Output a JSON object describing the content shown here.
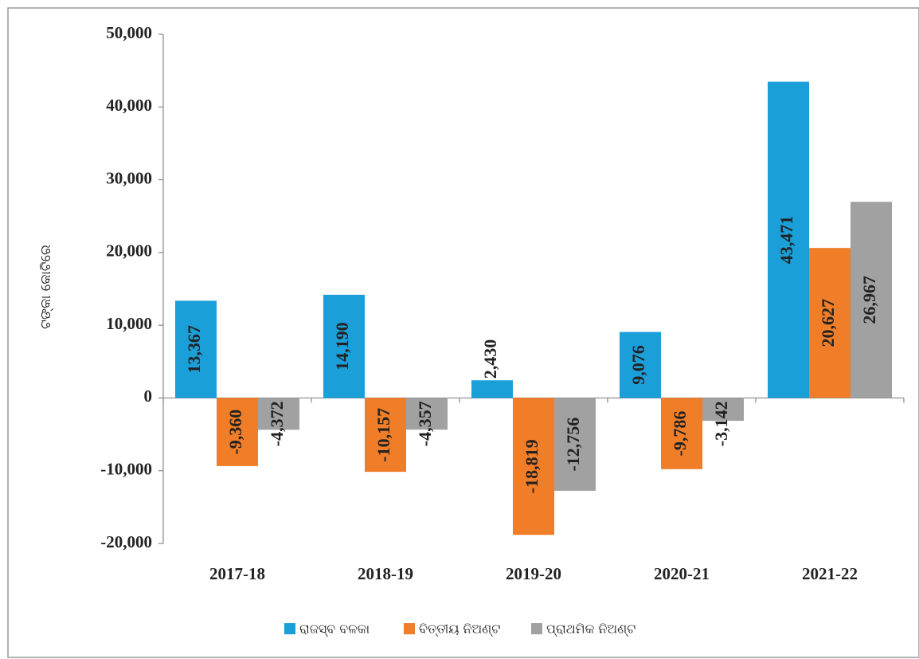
{
  "chart_data": {
    "type": "bar",
    "ylabel": "ଟଙ୍କା କୋଟିରେ",
    "categories": [
      "2017-18",
      "2018-19",
      "2019-20",
      "2020-21",
      "2021-22"
    ],
    "series": [
      {
        "name": "ରାଜସ୍ବ ବଳକା",
        "color": "#1b9fd9",
        "values": [
          13367,
          14190,
          2430,
          9076,
          43471
        ],
        "value_labels": [
          "13,367",
          "14,190",
          "2,430",
          "9,076",
          "43,471"
        ]
      },
      {
        "name": "ବିତ୍ତୀୟ ନିଅଣ୍ଟ",
        "color": "#f07d28",
        "values": [
          -9360,
          -10157,
          -18819,
          -9786,
          20627
        ],
        "value_labels": [
          "-9,360",
          "-10,157",
          "-18,819",
          "-9,786",
          "20,627"
        ]
      },
      {
        "name": "ପ୍ରାଥମିକ ନିଅଣ୍ଟ",
        "color": "#a1a1a1",
        "values": [
          -4372,
          -4357,
          -12756,
          -3142,
          26967
        ],
        "value_labels": [
          "-4,372",
          "-4,357",
          "-12,756",
          "-3,142",
          "26,967"
        ]
      }
    ],
    "ylim": [
      -20000,
      50000
    ],
    "yticks": [
      {
        "value": -20000,
        "label": "-20,000"
      },
      {
        "value": -10000,
        "label": "-10,000"
      },
      0,
      {
        "value": 10000,
        "label": "10,000"
      },
      {
        "value": 20000,
        "label": "20,000"
      },
      {
        "value": 30000,
        "label": "30,000"
      },
      {
        "value": 40000,
        "label": "40,000"
      },
      {
        "value": 50000,
        "label": "50,000"
      }
    ],
    "legend": "bottom",
    "grid": false
  }
}
